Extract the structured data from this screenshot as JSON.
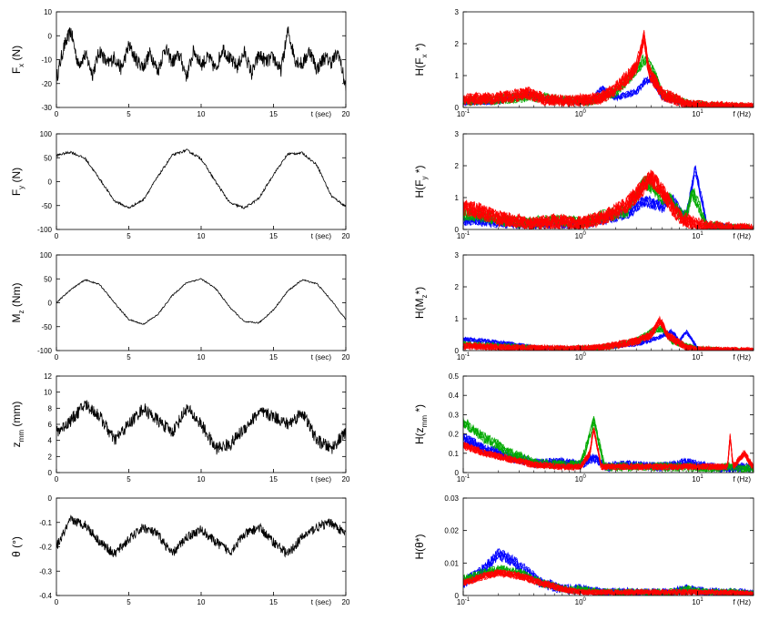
{
  "chart_data": [
    {
      "type": "line",
      "ylabel": {
        "main": "F",
        "sub": "x",
        "tail": " (N)"
      },
      "xlabel": "t (sec)",
      "xlim": [
        0,
        20
      ],
      "ylim": [
        -30,
        10
      ],
      "xticks": [
        "0",
        "5",
        "10",
        "15",
        "20"
      ],
      "yticks": [
        "-30",
        "-20",
        "-10",
        "0",
        "10"
      ],
      "series": [
        {
          "color": "#000000",
          "x": [
            0,
            0.5,
            1,
            1.5,
            2,
            2.5,
            3,
            3.5,
            4,
            4.5,
            5,
            5.5,
            6,
            6.5,
            7,
            7.5,
            8,
            8.5,
            9,
            9.5,
            10,
            10.5,
            11,
            11.5,
            12,
            12.5,
            13,
            13.5,
            14,
            14.5,
            15,
            15.5,
            16,
            16.5,
            17,
            17.5,
            18,
            18.5,
            19,
            19.5,
            20
          ],
          "y": [
            -18,
            -5,
            2,
            -12,
            -8,
            -16,
            -6,
            -12,
            -9,
            -14,
            -4,
            -10,
            -13,
            -7,
            -15,
            -5,
            -11,
            -8,
            -17,
            -6,
            -12,
            -9,
            -14,
            -5,
            -10,
            -13,
            -7,
            -16,
            -8,
            -11,
            -9,
            -15,
            2,
            -10,
            -12,
            -6,
            -14,
            -9,
            -11,
            -7,
            -22
          ],
          "noise": 6,
          "samples": 800
        }
      ]
    },
    {
      "type": "line",
      "ylabel": {
        "main": "F",
        "sub": "y",
        "tail": " (N)"
      },
      "xlabel": "t (sec)",
      "xlim": [
        0,
        20
      ],
      "ylim": [
        -100,
        100
      ],
      "xticks": [
        "0",
        "5",
        "10",
        "15",
        "20"
      ],
      "yticks": [
        "-100",
        "-50",
        "0",
        "50",
        "100"
      ],
      "series": [
        {
          "color": "#000000",
          "x": [
            0,
            1,
            2,
            3,
            4,
            5,
            6,
            7,
            8,
            9,
            10,
            11,
            12,
            13,
            14,
            15,
            16,
            17,
            18,
            19,
            20
          ],
          "y": [
            55,
            62,
            48,
            5,
            -40,
            -55,
            -38,
            10,
            55,
            66,
            48,
            0,
            -45,
            -55,
            -35,
            15,
            58,
            60,
            35,
            -30,
            -52
          ],
          "noise": 5,
          "samples": 600
        }
      ]
    },
    {
      "type": "line",
      "ylabel": {
        "main": "M",
        "sub": "z",
        "tail": " (Nm)"
      },
      "xlabel": "t (sec)",
      "xlim": [
        0,
        20
      ],
      "ylim": [
        -100,
        100
      ],
      "xticks": [
        "0",
        "5",
        "10",
        "15",
        "20"
      ],
      "yticks": [
        "-100",
        "-50",
        "0",
        "50",
        "100"
      ],
      "series": [
        {
          "color": "#000000",
          "x": [
            0,
            1,
            2,
            3,
            4,
            5,
            6,
            7,
            8,
            9,
            10,
            11,
            12,
            13,
            14,
            15,
            16,
            17,
            18,
            19,
            20
          ],
          "y": [
            0,
            28,
            48,
            38,
            0,
            -35,
            -45,
            -25,
            15,
            42,
            50,
            30,
            -10,
            -40,
            -42,
            -15,
            25,
            48,
            40,
            5,
            -35
          ],
          "noise": 3,
          "samples": 600
        }
      ]
    },
    {
      "type": "line",
      "ylabel": {
        "main": "z",
        "sub": "mm",
        "tail": " (mm)"
      },
      "xlabel": "t (sec)",
      "xlim": [
        0,
        20
      ],
      "ylim": [
        0,
        12
      ],
      "xticks": [
        "0",
        "5",
        "10",
        "15",
        "20"
      ],
      "yticks": [
        "0",
        "2",
        "4",
        "6",
        "8",
        "10",
        "12"
      ],
      "series": [
        {
          "color": "#000000",
          "x": [
            0,
            1,
            2,
            3,
            4,
            5,
            6,
            7,
            8,
            9,
            10,
            11,
            12,
            13,
            14,
            15,
            16,
            17,
            18,
            19,
            20
          ],
          "y": [
            5,
            6.5,
            8.5,
            7,
            4,
            6,
            8,
            6.5,
            5,
            8,
            6,
            3,
            3.5,
            5.5,
            7.5,
            7,
            6,
            7.5,
            4,
            3,
            5
          ],
          "noise": 1.6,
          "samples": 800
        }
      ]
    },
    {
      "type": "line",
      "ylabel": {
        "main": "θ",
        "sub": "",
        "tail": " (°)"
      },
      "xlabel": "t (sec)",
      "xlim": [
        0,
        20
      ],
      "ylim": [
        -0.4,
        0
      ],
      "xticks": [
        "0",
        "5",
        "10",
        "15",
        "20"
      ],
      "yticks": [
        "-0.4",
        "-0.3",
        "-0.2",
        "-0.1",
        "0"
      ],
      "series": [
        {
          "color": "#000000",
          "x": [
            0,
            1,
            2,
            3,
            4,
            5,
            6,
            7,
            8,
            9,
            10,
            11,
            12,
            13,
            14,
            15,
            16,
            17,
            18,
            19,
            20
          ],
          "y": [
            -0.2,
            -0.09,
            -0.11,
            -0.18,
            -0.23,
            -0.17,
            -0.12,
            -0.15,
            -0.23,
            -0.16,
            -0.13,
            -0.18,
            -0.22,
            -0.15,
            -0.12,
            -0.18,
            -0.23,
            -0.16,
            -0.12,
            -0.1,
            -0.15
          ],
          "noise": 0.04,
          "samples": 800
        }
      ]
    },
    {
      "type": "line",
      "xscale": "log",
      "ylabel": {
        "main": "H(F",
        "sub": "x",
        "tail": " *)"
      },
      "xlabel": "f (Hz)",
      "xlim": [
        0.1,
        30
      ],
      "ylim": [
        0,
        3
      ],
      "xticks": [
        "10-1",
        "100",
        "101"
      ],
      "yticks": [
        "0",
        "1",
        "2",
        "3"
      ],
      "series": [
        {
          "color": "#0000ff",
          "x": [
            0.1,
            0.2,
            0.35,
            0.5,
            0.8,
            1.2,
            1.5,
            2,
            3,
            3.5,
            4,
            5,
            8,
            12,
            20,
            30
          ],
          "y": [
            0.15,
            0.2,
            0.4,
            0.25,
            0.2,
            0.15,
            0.6,
            0.3,
            0.5,
            0.8,
            0.9,
            0.3,
            0.1,
            0.05,
            0.03,
            0.02
          ],
          "noise": 0.12,
          "copies": 6
        },
        {
          "color": "#00aa00",
          "x": [
            0.1,
            0.2,
            0.35,
            0.5,
            0.8,
            1.2,
            1.5,
            2,
            3,
            3.5,
            4,
            5,
            8,
            12,
            20,
            30
          ],
          "y": [
            0.2,
            0.25,
            0.35,
            0.3,
            0.2,
            0.2,
            0.3,
            0.5,
            1.2,
            1.5,
            1.3,
            0.4,
            0.12,
            0.06,
            0.03,
            0.02
          ],
          "noise": 0.2,
          "copies": 6
        },
        {
          "color": "#ff0000",
          "x": [
            0.1,
            0.2,
            0.35,
            0.5,
            0.8,
            1.2,
            1.5,
            2,
            3,
            3.5,
            3.8,
            4,
            5,
            8,
            12,
            20,
            30
          ],
          "y": [
            0.25,
            0.3,
            0.45,
            0.25,
            0.2,
            0.25,
            0.3,
            0.6,
            1.3,
            2.2,
            1.2,
            1.0,
            0.4,
            0.1,
            0.05,
            0.03,
            0.02
          ],
          "noise": 0.25,
          "copies": 10
        }
      ]
    },
    {
      "type": "line",
      "xscale": "log",
      "ylabel": {
        "main": "H(F",
        "sub": "y",
        "tail": " *)"
      },
      "xlabel": "f (Hz)",
      "xlim": [
        0.1,
        30
      ],
      "ylim": [
        0,
        3
      ],
      "xticks": [
        "10-1",
        "100",
        "101"
      ],
      "yticks": [
        "0",
        "1",
        "2",
        "3"
      ],
      "series": [
        {
          "color": "#0000ff",
          "x": [
            0.1,
            0.2,
            0.35,
            0.6,
            1,
            1.5,
            2.5,
            3.5,
            5,
            6,
            7,
            8,
            9,
            9.5,
            12,
            20,
            30
          ],
          "y": [
            0.3,
            0.2,
            0.15,
            0.2,
            0.15,
            0.3,
            0.5,
            0.9,
            0.7,
            1.0,
            0.6,
            0.4,
            1.4,
            1.9,
            0.1,
            0.05,
            0.02
          ],
          "noise": 0.2,
          "copies": 6
        },
        {
          "color": "#00aa00",
          "x": [
            0.1,
            0.2,
            0.35,
            0.6,
            1,
            1.5,
            2.5,
            3.5,
            5,
            6,
            7,
            8,
            9,
            12,
            20,
            30
          ],
          "y": [
            0.5,
            0.3,
            0.2,
            0.3,
            0.2,
            0.4,
            0.6,
            1.5,
            1.0,
            0.9,
            0.5,
            0.4,
            1.2,
            0.1,
            0.05,
            0.02
          ],
          "noise": 0.25,
          "copies": 6
        },
        {
          "color": "#ff0000",
          "x": [
            0.1,
            0.2,
            0.35,
            0.6,
            1,
            1.5,
            2.5,
            3.5,
            4,
            5,
            6,
            7,
            8,
            9,
            12,
            20,
            30
          ],
          "y": [
            0.7,
            0.35,
            0.2,
            0.25,
            0.2,
            0.35,
            0.8,
            1.4,
            1.6,
            1.2,
            0.7,
            0.4,
            0.3,
            0.2,
            0.1,
            0.05,
            0.02
          ],
          "noise": 0.3,
          "copies": 10
        }
      ]
    },
    {
      "type": "line",
      "xscale": "log",
      "ylabel": {
        "main": "H(M",
        "sub": "z",
        "tail": "*)"
      },
      "xlabel": "f (Hz)",
      "xlim": [
        0.1,
        30
      ],
      "ylim": [
        0,
        3
      ],
      "xticks": [
        "10-1",
        "100",
        "101"
      ],
      "yticks": [
        "0",
        "1",
        "2",
        "3"
      ],
      "series": [
        {
          "color": "#0000ff",
          "x": [
            0.1,
            0.2,
            0.4,
            0.8,
            1.5,
            3,
            4.5,
            6,
            7,
            8,
            10,
            20,
            30
          ],
          "y": [
            0.35,
            0.25,
            0.1,
            0.08,
            0.1,
            0.2,
            0.4,
            0.6,
            0.3,
            0.6,
            0.05,
            0.02,
            0.01
          ],
          "noise": 0.08,
          "copies": 6
        },
        {
          "color": "#00aa00",
          "x": [
            0.1,
            0.2,
            0.4,
            0.8,
            1.5,
            3,
            4,
            5,
            6,
            8,
            10,
            20,
            30
          ],
          "y": [
            0.2,
            0.15,
            0.08,
            0.06,
            0.1,
            0.3,
            0.6,
            0.7,
            0.3,
            0.15,
            0.05,
            0.02,
            0.01
          ],
          "noise": 0.12,
          "copies": 6
        },
        {
          "color": "#ff0000",
          "x": [
            0.1,
            0.2,
            0.4,
            0.8,
            1.5,
            3,
            4,
            4.8,
            5.5,
            6.5,
            8,
            10,
            20,
            30
          ],
          "y": [
            0.15,
            0.1,
            0.08,
            0.06,
            0.1,
            0.3,
            0.5,
            0.95,
            0.5,
            0.3,
            0.1,
            0.04,
            0.02,
            0.01
          ],
          "noise": 0.15,
          "copies": 10
        }
      ]
    },
    {
      "type": "line",
      "xscale": "log",
      "ylabel": {
        "main": "H(z",
        "sub": "mm",
        "tail": " *)"
      },
      "xlabel": "f (Hz)",
      "xlim": [
        0.1,
        30
      ],
      "ylim": [
        0,
        0.5
      ],
      "xticks": [
        "10-1",
        "100",
        "101"
      ],
      "yticks": [
        "0",
        "0.1",
        "0.2",
        "0.3",
        "0.4",
        "0.5"
      ],
      "series": [
        {
          "color": "#0000ff",
          "x": [
            0.1,
            0.15,
            0.25,
            0.4,
            0.7,
            1,
            1.3,
            1.6,
            2.5,
            5,
            8,
            12,
            18,
            25,
            30
          ],
          "y": [
            0.18,
            0.12,
            0.08,
            0.05,
            0.05,
            0.04,
            0.08,
            0.03,
            0.04,
            0.03,
            0.05,
            0.03,
            0.02,
            0.03,
            0.02
          ],
          "noise": 0.03,
          "copies": 8
        },
        {
          "color": "#00aa00",
          "x": [
            0.1,
            0.15,
            0.25,
            0.4,
            0.7,
            1,
            1.3,
            1.6,
            2.5,
            5,
            8,
            12,
            18,
            25,
            30
          ],
          "y": [
            0.26,
            0.18,
            0.1,
            0.05,
            0.04,
            0.04,
            0.27,
            0.03,
            0.03,
            0.03,
            0.03,
            0.02,
            0.03,
            0.02,
            0.02
          ],
          "noise": 0.03,
          "copies": 6
        },
        {
          "color": "#ff0000",
          "x": [
            0.1,
            0.15,
            0.25,
            0.4,
            0.7,
            1,
            1.2,
            1.3,
            1.5,
            2.5,
            5,
            8,
            12,
            18,
            19,
            20,
            25,
            30
          ],
          "y": [
            0.14,
            0.1,
            0.07,
            0.04,
            0.03,
            0.03,
            0.1,
            0.23,
            0.03,
            0.03,
            0.03,
            0.03,
            0.03,
            0.03,
            0.2,
            0.03,
            0.1,
            0.02
          ],
          "noise": 0.02,
          "copies": 10
        }
      ]
    },
    {
      "type": "line",
      "xscale": "log",
      "ylabel": {
        "main": "H(θ*)",
        "sub": "",
        "tail": ""
      },
      "xlabel": "f (Hz)",
      "xlim": [
        0.1,
        30
      ],
      "ylim": [
        0,
        0.03
      ],
      "xticks": [
        "10-1",
        "100",
        "101"
      ],
      "yticks": [
        "0",
        "0.01",
        "0.02",
        "0.03"
      ],
      "series": [
        {
          "color": "#0000ff",
          "x": [
            0.1,
            0.15,
            0.2,
            0.3,
            0.45,
            0.7,
            1,
            1.5,
            3,
            6,
            8,
            12,
            20,
            30
          ],
          "y": [
            0.004,
            0.008,
            0.013,
            0.009,
            0.004,
            0.002,
            0.002,
            0.001,
            0.001,
            0.001,
            0.002,
            0.001,
            0.001,
            0.0005
          ],
          "noise": 0.002,
          "copies": 6
        },
        {
          "color": "#00aa00",
          "x": [
            0.1,
            0.15,
            0.2,
            0.3,
            0.45,
            0.7,
            1,
            1.5,
            3,
            6,
            8,
            12,
            20,
            30
          ],
          "y": [
            0.005,
            0.007,
            0.008,
            0.007,
            0.004,
            0.002,
            0.002,
            0.001,
            0.001,
            0.001,
            0.002,
            0.001,
            0.001,
            0.0005
          ],
          "noise": 0.0015,
          "copies": 6
        },
        {
          "color": "#ff0000",
          "x": [
            0.1,
            0.15,
            0.2,
            0.3,
            0.45,
            0.7,
            1,
            1.5,
            3,
            6,
            8,
            12,
            20,
            30
          ],
          "y": [
            0.004,
            0.006,
            0.007,
            0.006,
            0.004,
            0.002,
            0.001,
            0.001,
            0.001,
            0.001,
            0.001,
            0.001,
            0.0008,
            0.0005
          ],
          "noise": 0.0012,
          "copies": 10
        }
      ]
    }
  ]
}
